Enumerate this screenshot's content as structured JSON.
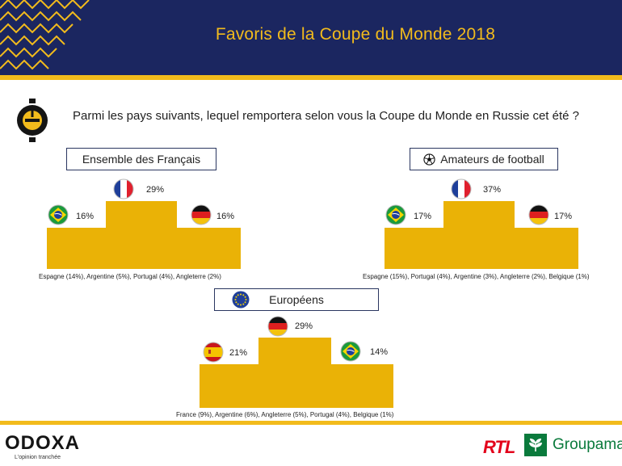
{
  "header": {
    "title": "Favoris de la Coupe du Monde 2018"
  },
  "question": "Parmi les pays suivants, lequel remportera selon vous la Coupe du Monde en Russie cet été ?",
  "colors": {
    "navy": "#1b2660",
    "gold": "#f2bb1c",
    "podium": "#eab206"
  },
  "chart_data": [
    {
      "type": "podium",
      "title": "Ensemble des Français",
      "podium": [
        {
          "rank": 1,
          "country": "France",
          "value": "29%"
        },
        {
          "rank": 2,
          "country": "Brésil",
          "value": "16%"
        },
        {
          "rank": 3,
          "country": "Allemagne",
          "value": "16%"
        }
      ],
      "others": "Espagne (14%), Argentine (5%), Portugal (4%), Angleterre (2%)"
    },
    {
      "type": "podium",
      "title": "Amateurs de football",
      "title_icon": "soccer-ball-icon",
      "podium": [
        {
          "rank": 1,
          "country": "France",
          "value": "37%"
        },
        {
          "rank": 2,
          "country": "Brésil",
          "value": "17%"
        },
        {
          "rank": 3,
          "country": "Allemagne",
          "value": "17%"
        }
      ],
      "others": "Espagne (15%), Portugal (4%), Argentine (3%), Angleterre (2%), Belgique (1%)"
    },
    {
      "type": "podium",
      "title": "Européens",
      "title_icon": "eu-flag-icon",
      "podium": [
        {
          "rank": 1,
          "country": "Allemagne",
          "value": "29%"
        },
        {
          "rank": 2,
          "country": "Espagne",
          "value": "21%"
        },
        {
          "rank": 3,
          "country": "Brésil",
          "value": "14%"
        }
      ],
      "others": "France  (9%), Argentine (6%), Angleterre (5%), Portugal (4%), Belgique (1%)"
    }
  ],
  "footer": {
    "odoxa": "ODOXA",
    "odoxa_tagline": "L'opinion tranchée",
    "rtl": "RTL",
    "groupama": "Groupama"
  }
}
